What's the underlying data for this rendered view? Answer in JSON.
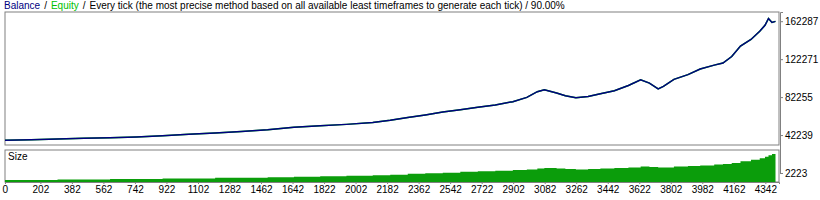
{
  "chart_data": [
    {
      "type": "line",
      "subtitle": "Every tick (the most precise method based on all available least timeframes to generate each tick) / 90.00%",
      "annotations": [
        "/"
      ],
      "x": [
        0,
        150,
        300,
        450,
        600,
        750,
        900,
        1050,
        1200,
        1350,
        1500,
        1650,
        1800,
        1950,
        2100,
        2200,
        2300,
        2400,
        2500,
        2600,
        2700,
        2800,
        2900,
        2980,
        3040,
        3080,
        3150,
        3200,
        3260,
        3330,
        3400,
        3480,
        3560,
        3630,
        3680,
        3730,
        3760,
        3820,
        3900,
        3970,
        4050,
        4100,
        4150,
        4200,
        4260,
        4310,
        4340,
        4360,
        4380,
        4400
      ],
      "series": [
        {
          "name": "Balance",
          "color": "#000080",
          "values": [
            36700,
            37300,
            38000,
            38800,
            39500,
            40300,
            41500,
            43000,
            44500,
            46000,
            47800,
            50500,
            52000,
            53500,
            55500,
            57800,
            60700,
            63500,
            66500,
            69000,
            71500,
            74000,
            77400,
            82000,
            88000,
            90000,
            86500,
            83700,
            81600,
            82800,
            85800,
            89000,
            94500,
            100400,
            97000,
            91000,
            93500,
            101000,
            106000,
            111900,
            116000,
            118200,
            125000,
            136000,
            143000,
            151600,
            158000,
            165200,
            161000,
            162100
          ]
        },
        {
          "name": "Equity",
          "color": "#00c000",
          "values": [
            36700,
            37300,
            38000,
            38800,
            39500,
            40300,
            41500,
            43000,
            44500,
            46000,
            47800,
            50500,
            52000,
            53500,
            55500,
            57800,
            60700,
            63500,
            66500,
            69000,
            71500,
            74000,
            77400,
            82000,
            88000,
            90000,
            86500,
            83700,
            81600,
            82800,
            85800,
            89000,
            94500,
            100400,
            97000,
            91000,
            93500,
            101000,
            106000,
            111900,
            116000,
            118200,
            125000,
            136000,
            143000,
            151600,
            158000,
            165200,
            161000,
            162100
          ]
        }
      ],
      "xlim": [
        0,
        4420
      ],
      "ylim": [
        2223,
        172000
      ],
      "yticks": [
        2223,
        42239,
        82255,
        122271,
        162287
      ],
      "tick_labels": "y",
      "grid": false
    },
    {
      "type": "area",
      "title": "Size",
      "x": [
        0,
        150,
        300,
        450,
        600,
        750,
        900,
        1050,
        1200,
        1350,
        1500,
        1650,
        1800,
        1950,
        2100,
        2200,
        2300,
        2400,
        2500,
        2600,
        2700,
        2800,
        2900,
        2980,
        3040,
        3080,
        3150,
        3200,
        3260,
        3330,
        3400,
        3480,
        3560,
        3630,
        3680,
        3730,
        3760,
        3820,
        3900,
        3970,
        4050,
        4100,
        4150,
        4200,
        4260,
        4310,
        4340,
        4360,
        4380,
        4400
      ],
      "values": [
        2,
        2,
        2.5,
        2.5,
        3,
        3,
        3.5,
        3.5,
        4,
        4,
        4.5,
        5,
        5.5,
        6,
        6.5,
        7,
        8,
        8.5,
        9,
        10,
        10.5,
        11,
        11.5,
        12,
        13,
        13.5,
        13,
        12.5,
        12,
        12.5,
        13,
        13.5,
        14,
        15,
        14.5,
        14,
        14,
        15,
        15.5,
        16,
        17,
        17.5,
        18.5,
        20,
        21.5,
        23,
        24.5,
        26,
        27,
        27
      ],
      "color": "#0b9d0b",
      "xlim": [
        0,
        4420
      ],
      "ylim": [
        0,
        30
      ],
      "xticks": [
        0,
        202,
        382,
        562,
        742,
        922,
        1102,
        1282,
        1462,
        1642,
        1822,
        2002,
        2182,
        2362,
        2542,
        2722,
        2902,
        3082,
        3262,
        3442,
        3622,
        3802,
        3982,
        4162,
        4342
      ],
      "tick_labels": "x",
      "grid": false
    }
  ]
}
